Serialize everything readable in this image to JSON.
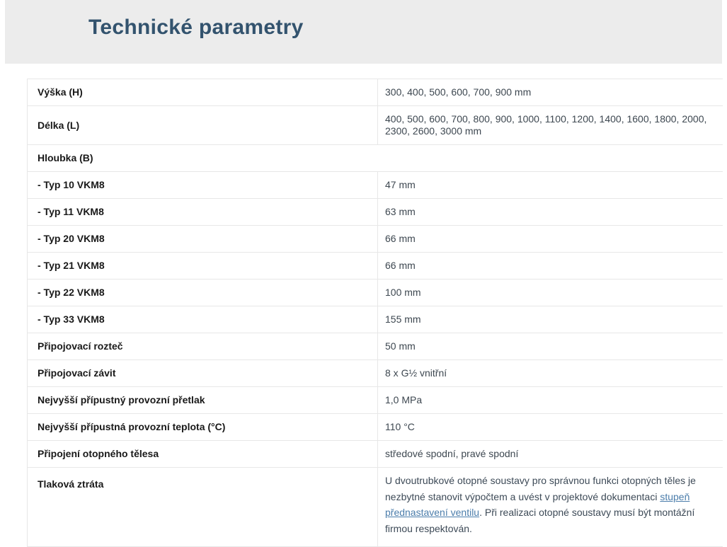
{
  "page": {
    "title": "Technické parametry"
  },
  "colors": {
    "header_band": "#ececec",
    "title_text": "#33536e",
    "link": "#4b7dab",
    "row_border": "#e7e7e7",
    "label_text": "#191919",
    "value_text": "#3d4750"
  },
  "table": {
    "rows": [
      {
        "label": "Výška (H)",
        "value": "300, 400, 500, 600, 700, 900 mm"
      },
      {
        "label": "Délka (L)",
        "value": "400, 500, 600, 700, 800, 900, 1000, 1100, 1200, 1400, 1600, 1800, 2000, 2300, 2600, 3000 mm"
      },
      {
        "label": "Hloubka (B)",
        "value": ""
      },
      {
        "label": "- Typ 10 VKM8",
        "value": "47 mm"
      },
      {
        "label": "- Typ 11 VKM8",
        "value": "63 mm"
      },
      {
        "label": "- Typ 20 VKM8",
        "value": "66 mm"
      },
      {
        "label": "- Typ 21 VKM8",
        "value": "66 mm"
      },
      {
        "label": "- Typ 22 VKM8",
        "value": "100 mm"
      },
      {
        "label": "- Typ 33 VKM8",
        "value": "155 mm"
      },
      {
        "label": "Připojovací rozteč",
        "value": "50 mm"
      },
      {
        "label": "Připojovací závit",
        "value": "8 x G½ vnitřní"
      },
      {
        "label": "Nejvyšší přípustný provozní přetlak",
        "value": "1,0 MPa"
      },
      {
        "label": "Nejvyšší přípustná provozní teplota (°C)",
        "value": "110 °C"
      },
      {
        "label": "Připojení otopného tělesa",
        "value": "středové spodní, pravé spodní"
      },
      {
        "label": "Tlaková ztráta",
        "value_parts": [
          {
            "text": "U dvoutrubkové otopné soustavy pro správnou funkci otopných těles je nezbytné stanovit výpočtem a uvést v projektové dokumentaci "
          },
          {
            "text": "stupeň přednastavení ventilu",
            "link": true
          },
          {
            "text": ". Při realizaci otopné soustavy musí být montážní firmou respektován."
          }
        ]
      }
    ]
  }
}
